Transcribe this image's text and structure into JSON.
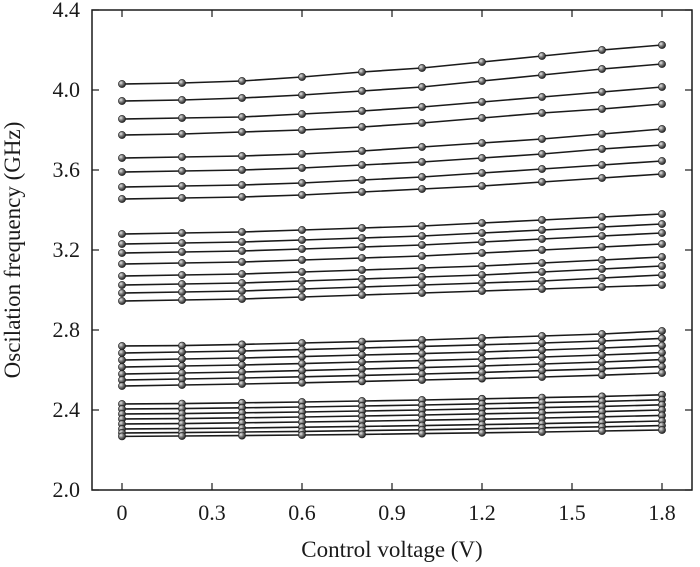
{
  "chart_data": {
    "type": "line",
    "title": "",
    "xlabel": "Control voltage (V)",
    "ylabel": "Oscilation frequency (GHz)",
    "xlim": [
      -0.1,
      1.9
    ],
    "ylim": [
      2.0,
      4.4
    ],
    "x_ticks": [
      0,
      0.3,
      0.6,
      0.9,
      1.2,
      1.5,
      1.8
    ],
    "x_tick_labels": [
      "0",
      "0.3",
      "0.6",
      "0.9",
      "1.2",
      "1.5",
      "1.8"
    ],
    "y_ticks": [
      2.0,
      2.4,
      2.8,
      3.2,
      3.6,
      4.0,
      4.4
    ],
    "y_tick_labels": [
      "2.0",
      "2.4",
      "2.8",
      "3.2",
      "3.6",
      "4.0",
      "4.4"
    ],
    "grid": false,
    "legend": false,
    "marker": "sphere",
    "line_color": "#1a1a1a",
    "x": [
      0,
      0.2,
      0.4,
      0.6,
      0.8,
      1.0,
      1.2,
      1.4,
      1.6,
      1.8
    ],
    "series": [
      {
        "values": [
          4.03,
          4.035,
          4.045,
          4.065,
          4.09,
          4.11,
          4.14,
          4.17,
          4.2,
          4.225
        ]
      },
      {
        "values": [
          3.945,
          3.95,
          3.96,
          3.975,
          3.995,
          4.015,
          4.045,
          4.075,
          4.105,
          4.13
        ]
      },
      {
        "values": [
          3.855,
          3.86,
          3.865,
          3.88,
          3.895,
          3.915,
          3.94,
          3.965,
          3.99,
          4.015
        ]
      },
      {
        "values": [
          3.775,
          3.78,
          3.79,
          3.8,
          3.815,
          3.835,
          3.86,
          3.885,
          3.905,
          3.93
        ]
      },
      {
        "values": [
          3.66,
          3.665,
          3.67,
          3.68,
          3.695,
          3.715,
          3.735,
          3.755,
          3.78,
          3.805
        ]
      },
      {
        "values": [
          3.59,
          3.595,
          3.6,
          3.61,
          3.625,
          3.64,
          3.66,
          3.68,
          3.705,
          3.725
        ]
      },
      {
        "values": [
          3.515,
          3.52,
          3.525,
          3.535,
          3.55,
          3.565,
          3.585,
          3.605,
          3.625,
          3.645
        ]
      },
      {
        "values": [
          3.455,
          3.46,
          3.465,
          3.475,
          3.49,
          3.505,
          3.52,
          3.54,
          3.56,
          3.58
        ]
      },
      {
        "values": [
          3.28,
          3.285,
          3.29,
          3.3,
          3.31,
          3.32,
          3.335,
          3.35,
          3.365,
          3.38
        ]
      },
      {
        "values": [
          3.23,
          3.235,
          3.24,
          3.25,
          3.26,
          3.27,
          3.285,
          3.3,
          3.315,
          3.33
        ]
      },
      {
        "values": [
          3.185,
          3.19,
          3.195,
          3.205,
          3.215,
          3.225,
          3.24,
          3.255,
          3.27,
          3.285
        ]
      },
      {
        "values": [
          3.13,
          3.135,
          3.14,
          3.15,
          3.16,
          3.17,
          3.185,
          3.2,
          3.215,
          3.23
        ]
      },
      {
        "values": [
          3.07,
          3.075,
          3.08,
          3.09,
          3.1,
          3.11,
          3.12,
          3.135,
          3.15,
          3.165
        ]
      },
      {
        "values": [
          3.025,
          3.03,
          3.035,
          3.045,
          3.055,
          3.065,
          3.075,
          3.09,
          3.105,
          3.12
        ]
      },
      {
        "values": [
          2.985,
          2.99,
          2.995,
          3.005,
          3.015,
          3.025,
          3.035,
          3.045,
          3.06,
          3.075
        ]
      },
      {
        "values": [
          2.945,
          2.95,
          2.955,
          2.965,
          2.975,
          2.985,
          2.995,
          3.005,
          3.015,
          3.025
        ]
      },
      {
        "values": [
          2.72,
          2.722,
          2.728,
          2.735,
          2.742,
          2.75,
          2.76,
          2.77,
          2.78,
          2.795
        ]
      },
      {
        "values": [
          2.685,
          2.69,
          2.695,
          2.702,
          2.71,
          2.718,
          2.726,
          2.735,
          2.745,
          2.758
        ]
      },
      {
        "values": [
          2.65,
          2.655,
          2.66,
          2.667,
          2.675,
          2.682,
          2.69,
          2.7,
          2.71,
          2.722
        ]
      },
      {
        "values": [
          2.615,
          2.62,
          2.625,
          2.632,
          2.64,
          2.647,
          2.655,
          2.665,
          2.675,
          2.687
        ]
      },
      {
        "values": [
          2.58,
          2.585,
          2.59,
          2.597,
          2.605,
          2.612,
          2.62,
          2.63,
          2.64,
          2.652
        ]
      },
      {
        "values": [
          2.55,
          2.555,
          2.56,
          2.566,
          2.573,
          2.58,
          2.588,
          2.597,
          2.606,
          2.617
        ]
      },
      {
        "values": [
          2.52,
          2.525,
          2.53,
          2.536,
          2.543,
          2.55,
          2.557,
          2.565,
          2.574,
          2.585
        ]
      },
      {
        "values": [
          2.43,
          2.432,
          2.436,
          2.44,
          2.445,
          2.45,
          2.456,
          2.462,
          2.468,
          2.476
        ]
      },
      {
        "values": [
          2.405,
          2.407,
          2.411,
          2.415,
          2.42,
          2.425,
          2.431,
          2.437,
          2.443,
          2.451
        ]
      },
      {
        "values": [
          2.38,
          2.382,
          2.386,
          2.39,
          2.395,
          2.4,
          2.406,
          2.412,
          2.418,
          2.426
        ]
      },
      {
        "values": [
          2.355,
          2.357,
          2.361,
          2.365,
          2.37,
          2.375,
          2.381,
          2.386,
          2.392,
          2.4
        ]
      },
      {
        "values": [
          2.33,
          2.332,
          2.336,
          2.34,
          2.344,
          2.349,
          2.354,
          2.36,
          2.366,
          2.373
        ]
      },
      {
        "values": [
          2.305,
          2.307,
          2.31,
          2.314,
          2.318,
          2.322,
          2.327,
          2.332,
          2.338,
          2.345
        ]
      },
      {
        "values": [
          2.285,
          2.287,
          2.29,
          2.293,
          2.297,
          2.301,
          2.306,
          2.311,
          2.316,
          2.322
        ]
      },
      {
        "values": [
          2.268,
          2.27,
          2.272,
          2.275,
          2.278,
          2.282,
          2.286,
          2.29,
          2.295,
          2.3
        ]
      }
    ]
  }
}
